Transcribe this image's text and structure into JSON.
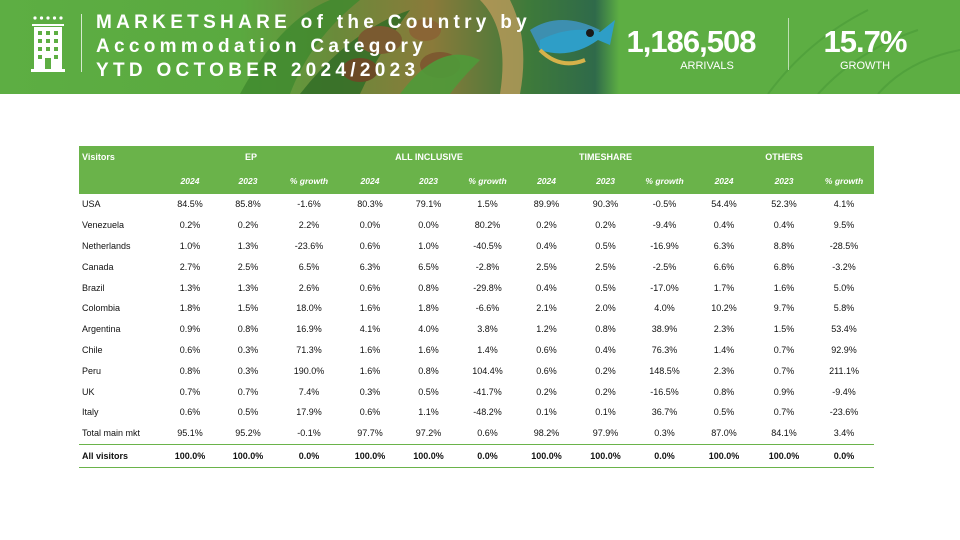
{
  "header": {
    "title_lines": [
      "MARKETSHARE of the Country by",
      "Accommodation Category",
      "YTD OCTOBER 2024/2023"
    ],
    "arrivals_value": "1,186,508",
    "arrivals_label": "ARRIVALS",
    "growth_value": "15.7%",
    "growth_label": "GROWTH",
    "icon": "hotel-building-icon"
  },
  "colors": {
    "brand_green": "#5dae43",
    "table_header_green": "#6ab34a"
  },
  "table": {
    "visitors_label": "Visitors",
    "groups": [
      "EP",
      "ALL INCLUSIVE",
      "TIMESHARE",
      "OTHERS"
    ],
    "subheaders": [
      "2024",
      "2023",
      "% growth"
    ],
    "rows": [
      {
        "name": "USA",
        "values": [
          "84.5%",
          "85.8%",
          "-1.6%",
          "80.3%",
          "79.1%",
          "1.5%",
          "89.9%",
          "90.3%",
          "-0.5%",
          "54.4%",
          "52.3%",
          "4.1%"
        ]
      },
      {
        "name": "Venezuela",
        "values": [
          "0.2%",
          "0.2%",
          "2.2%",
          "0.0%",
          "0.0%",
          "80.2%",
          "0.2%",
          "0.2%",
          "-9.4%",
          "0.4%",
          "0.4%",
          "9.5%"
        ]
      },
      {
        "name": "Netherlands",
        "values": [
          "1.0%",
          "1.3%",
          "-23.6%",
          "0.6%",
          "1.0%",
          "-40.5%",
          "0.4%",
          "0.5%",
          "-16.9%",
          "6.3%",
          "8.8%",
          "-28.5%"
        ]
      },
      {
        "name": "Canada",
        "values": [
          "2.7%",
          "2.5%",
          "6.5%",
          "6.3%",
          "6.5%",
          "-2.8%",
          "2.5%",
          "2.5%",
          "-2.5%",
          "6.6%",
          "6.8%",
          "-3.2%"
        ]
      },
      {
        "name": "Brazil",
        "values": [
          "1.3%",
          "1.3%",
          "2.6%",
          "0.6%",
          "0.8%",
          "-29.8%",
          "0.4%",
          "0.5%",
          "-17.0%",
          "1.7%",
          "1.6%",
          "5.0%"
        ]
      },
      {
        "name": "Colombia",
        "values": [
          "1.8%",
          "1.5%",
          "18.0%",
          "1.6%",
          "1.8%",
          "-6.6%",
          "2.1%",
          "2.0%",
          "4.0%",
          "10.2%",
          "9.7%",
          "5.8%"
        ]
      },
      {
        "name": "Argentina",
        "values": [
          "0.9%",
          "0.8%",
          "16.9%",
          "4.1%",
          "4.0%",
          "3.8%",
          "1.2%",
          "0.8%",
          "38.9%",
          "2.3%",
          "1.5%",
          "53.4%"
        ]
      },
      {
        "name": "Chile",
        "values": [
          "0.6%",
          "0.3%",
          "71.3%",
          "1.6%",
          "1.6%",
          "1.4%",
          "0.6%",
          "0.4%",
          "76.3%",
          "1.4%",
          "0.7%",
          "92.9%"
        ]
      },
      {
        "name": "Peru",
        "values": [
          "0.8%",
          "0.3%",
          "190.0%",
          "1.6%",
          "0.8%",
          "104.4%",
          "0.6%",
          "0.2%",
          "148.5%",
          "2.3%",
          "0.7%",
          "211.1%"
        ]
      },
      {
        "name": "UK",
        "values": [
          "0.7%",
          "0.7%",
          "7.4%",
          "0.3%",
          "0.5%",
          "-41.7%",
          "0.2%",
          "0.2%",
          "-16.5%",
          "0.8%",
          "0.9%",
          "-9.4%"
        ]
      },
      {
        "name": "Italy",
        "values": [
          "0.6%",
          "0.5%",
          "17.9%",
          "0.6%",
          "1.1%",
          "-48.2%",
          "0.1%",
          "0.1%",
          "36.7%",
          "0.5%",
          "0.7%",
          "-23.6%"
        ]
      },
      {
        "name": "Total main mkt",
        "values": [
          "95.1%",
          "95.2%",
          "-0.1%",
          "97.7%",
          "97.2%",
          "0.6%",
          "98.2%",
          "97.9%",
          "0.3%",
          "87.0%",
          "84.1%",
          "3.4%"
        ]
      },
      {
        "name": "All visitors",
        "values": [
          "100.0%",
          "100.0%",
          "0.0%",
          "100.0%",
          "100.0%",
          "0.0%",
          "100.0%",
          "100.0%",
          "0.0%",
          "100.0%",
          "100.0%",
          "0.0%"
        ]
      }
    ]
  }
}
